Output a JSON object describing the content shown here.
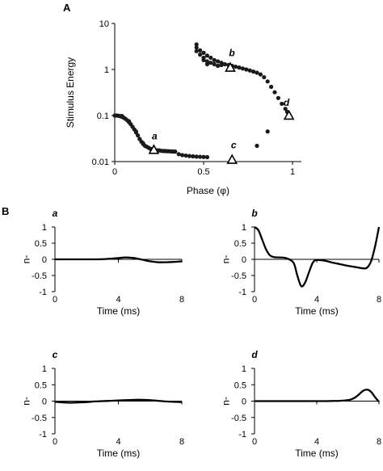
{
  "panel_letters": {
    "top": "A",
    "bottom": "B"
  },
  "chart_data": [
    {
      "id": "A",
      "type": "scatter",
      "title": "",
      "xlabel": "Phase (φ)",
      "ylabel": "Stimulus Energy",
      "xlim": [
        0,
        1.05
      ],
      "ylim": [
        0.01,
        10
      ],
      "yscale": "log",
      "xticks": [
        0,
        0.5,
        1
      ],
      "xtick_labels": [
        "0",
        "0.5",
        "1"
      ],
      "yticks": [
        0.01,
        0.1,
        1,
        10
      ],
      "ytick_labels": [
        "0.01",
        "0.1",
        "1",
        "10"
      ],
      "grid": false,
      "series": [
        {
          "marker": "dot",
          "color": "#1a1a1a",
          "points": [
            [
              0.0,
              0.1
            ],
            [
              0.01,
              0.1
            ],
            [
              0.02,
              0.099
            ],
            [
              0.03,
              0.097
            ],
            [
              0.04,
              0.094
            ],
            [
              0.05,
              0.09
            ],
            [
              0.06,
              0.085
            ],
            [
              0.07,
              0.079
            ],
            [
              0.08,
              0.072
            ],
            [
              0.09,
              0.065
            ],
            [
              0.1,
              0.057
            ],
            [
              0.11,
              0.05
            ],
            [
              0.12,
              0.043
            ],
            [
              0.13,
              0.037
            ],
            [
              0.14,
              0.031
            ],
            [
              0.15,
              0.027
            ],
            [
              0.16,
              0.024
            ],
            [
              0.17,
              0.022
            ],
            [
              0.18,
              0.021
            ],
            [
              0.19,
              0.02
            ],
            [
              0.2,
              0.019
            ],
            [
              0.21,
              0.0185
            ],
            [
              0.22,
              0.018
            ],
            [
              0.23,
              0.0178
            ],
            [
              0.24,
              0.0175
            ],
            [
              0.25,
              0.0175
            ],
            [
              0.26,
              0.0172
            ],
            [
              0.27,
              0.017
            ],
            [
              0.28,
              0.017
            ],
            [
              0.29,
              0.0168
            ],
            [
              0.3,
              0.0168
            ],
            [
              0.31,
              0.0167
            ],
            [
              0.32,
              0.0166
            ],
            [
              0.33,
              0.0165
            ],
            [
              0.34,
              0.0165
            ],
            [
              0.36,
              0.0145
            ],
            [
              0.38,
              0.0138
            ],
            [
              0.4,
              0.0135
            ],
            [
              0.42,
              0.0132
            ],
            [
              0.44,
              0.013
            ],
            [
              0.46,
              0.0128
            ],
            [
              0.48,
              0.0127
            ],
            [
              0.5,
              0.0126
            ],
            [
              0.52,
              0.0125
            ],
            [
              0.04,
              0.098
            ],
            [
              0.08,
              0.075
            ],
            [
              0.12,
              0.045
            ],
            [
              0.16,
              0.025
            ],
            [
              0.46,
              3.5
            ],
            [
              0.46,
              3.0
            ],
            [
              0.46,
              2.5
            ],
            [
              0.48,
              2.6
            ],
            [
              0.48,
              2.1
            ],
            [
              0.5,
              2.3
            ],
            [
              0.5,
              1.8
            ],
            [
              0.5,
              1.6
            ],
            [
              0.52,
              2.0
            ],
            [
              0.52,
              1.5
            ],
            [
              0.52,
              1.3
            ],
            [
              0.54,
              1.8
            ],
            [
              0.54,
              1.4
            ],
            [
              0.56,
              1.6
            ],
            [
              0.56,
              1.3
            ],
            [
              0.58,
              1.5
            ],
            [
              0.58,
              1.2
            ],
            [
              0.6,
              1.4
            ],
            [
              0.6,
              1.25
            ],
            [
              0.62,
              1.3
            ],
            [
              0.64,
              1.25
            ],
            [
              0.66,
              1.2
            ],
            [
              0.68,
              1.15
            ],
            [
              0.7,
              1.1
            ],
            [
              0.72,
              1.05
            ],
            [
              0.74,
              1.0
            ],
            [
              0.76,
              0.95
            ],
            [
              0.78,
              0.9
            ],
            [
              0.8,
              0.85
            ],
            [
              0.82,
              0.78
            ],
            [
              0.84,
              0.68
            ],
            [
              0.86,
              0.55
            ],
            [
              0.88,
              0.42
            ],
            [
              0.9,
              0.32
            ],
            [
              0.92,
              0.24
            ],
            [
              0.94,
              0.18
            ],
            [
              0.96,
              0.14
            ],
            [
              0.97,
              0.12
            ],
            [
              0.8,
              0.022
            ],
            [
              0.86,
              0.045
            ]
          ]
        },
        {
          "marker": "open-triangle",
          "color": "#000000",
          "points": [
            [
              0.22,
              0.018
            ],
            [
              0.65,
              1.1
            ],
            [
              0.66,
              0.011
            ],
            [
              0.98,
              0.1
            ]
          ],
          "point_labels": [
            "a",
            "b",
            "c",
            "d"
          ]
        }
      ]
    },
    {
      "id": "a",
      "type": "line",
      "title": "a",
      "xlabel": "Time (ms)",
      "ylabel": "-u",
      "xlim": [
        0,
        8
      ],
      "ylim": [
        -1,
        1
      ],
      "xticks": [
        0,
        4,
        8
      ],
      "xtick_labels": [
        "0",
        "4",
        "8"
      ],
      "yticks": [
        -1,
        -0.5,
        0,
        0.5,
        1
      ],
      "ytick_labels": [
        "-1",
        "-0.5",
        "0",
        "0.5",
        "1"
      ],
      "grid": false,
      "x": [
        0,
        0.5,
        1,
        1.5,
        2,
        2.5,
        3,
        3.5,
        4,
        4.5,
        5,
        5.5,
        6,
        6.5,
        7,
        7.5,
        8
      ],
      "y": [
        0,
        0,
        0,
        0,
        0,
        0,
        0.005,
        0.02,
        0.04,
        0.06,
        0.04,
        -0.01,
        -0.06,
        -0.09,
        -0.09,
        -0.08,
        -0.06
      ]
    },
    {
      "id": "b",
      "type": "line",
      "title": "b",
      "xlabel": "Time (ms)",
      "ylabel": "-u",
      "xlim": [
        0,
        8
      ],
      "ylim": [
        -1,
        1
      ],
      "xticks": [
        0,
        4,
        8
      ],
      "xtick_labels": [
        "0",
        "4",
        "8"
      ],
      "yticks": [
        -1,
        -0.5,
        0,
        0.5,
        1
      ],
      "ytick_labels": [
        "-1",
        "-0.5",
        "0",
        "0.5",
        "1"
      ],
      "grid": false,
      "x": [
        0,
        0.25,
        0.5,
        0.75,
        1,
        1.25,
        1.5,
        2,
        2.5,
        2.75,
        3,
        3.25,
        3.5,
        3.75,
        4,
        4.5,
        5,
        5.5,
        6,
        6.5,
        7,
        7.25,
        7.5,
        7.75,
        8
      ],
      "y": [
        1,
        0.9,
        0.6,
        0.3,
        0.12,
        0.07,
        0.06,
        0.04,
        -0.1,
        -0.5,
        -0.83,
        -0.72,
        -0.4,
        -0.1,
        -0.02,
        -0.04,
        -0.1,
        -0.15,
        -0.2,
        -0.24,
        -0.28,
        -0.25,
        -0.05,
        0.4,
        1
      ]
    },
    {
      "id": "c",
      "type": "line",
      "title": "c",
      "xlabel": "Time (ms)",
      "ylabel": "-u",
      "xlim": [
        0,
        8
      ],
      "ylim": [
        -1,
        1
      ],
      "xticks": [
        0,
        4,
        8
      ],
      "xtick_labels": [
        "0",
        "4",
        "8"
      ],
      "yticks": [
        -1,
        -0.5,
        0,
        0.5,
        1
      ],
      "ytick_labels": [
        "-1",
        "-0.5",
        "0",
        "0.5",
        "1"
      ],
      "grid": false,
      "x": [
        0,
        0.5,
        1,
        1.5,
        2,
        2.5,
        3,
        3.5,
        4,
        4.5,
        5,
        5.5,
        6,
        6.5,
        7,
        7.5,
        8
      ],
      "y": [
        -0.02,
        -0.04,
        -0.05,
        -0.04,
        -0.03,
        -0.01,
        0.0,
        0.01,
        0.02,
        0.03,
        0.04,
        0.04,
        0.03,
        0.01,
        -0.01,
        -0.02,
        -0.03
      ]
    },
    {
      "id": "d",
      "type": "line",
      "title": "d",
      "xlabel": "Time (ms)",
      "ylabel": "-u",
      "xlim": [
        0,
        8
      ],
      "ylim": [
        -1,
        1
      ],
      "xticks": [
        0,
        4,
        8
      ],
      "xtick_labels": [
        "0",
        "4",
        "8"
      ],
      "yticks": [
        -1,
        -0.5,
        0,
        0.5,
        1
      ],
      "ytick_labels": [
        "-1",
        "-0.5",
        "0",
        "0.5",
        "1"
      ],
      "grid": false,
      "x": [
        0,
        1,
        2,
        3,
        4,
        4.5,
        5,
        5.5,
        6,
        6.25,
        6.5,
        6.75,
        7,
        7.25,
        7.5,
        7.75,
        8
      ],
      "y": [
        0,
        0,
        0,
        0,
        0,
        0,
        0.005,
        0.01,
        0.03,
        0.06,
        0.12,
        0.22,
        0.32,
        0.35,
        0.28,
        0.12,
        -0.02
      ]
    }
  ]
}
